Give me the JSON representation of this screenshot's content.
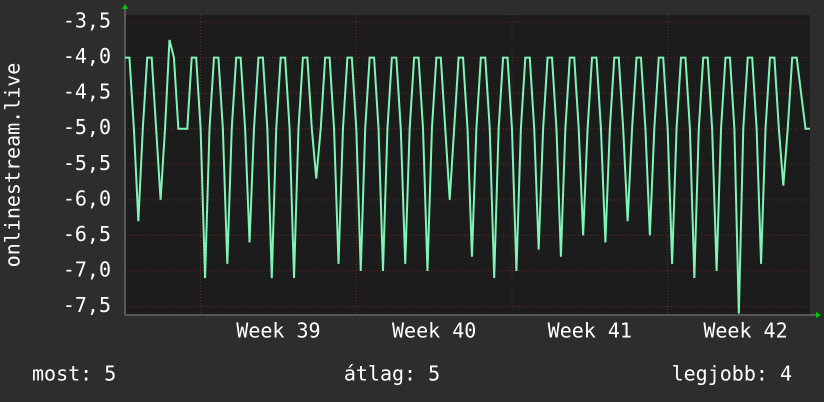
{
  "chart_data": {
    "type": "line",
    "y_label": "onlinestream.live",
    "ylim": [
      -7.62,
      -3.4
    ],
    "yticks": [
      {
        "value": -3.5,
        "label": "-3,5"
      },
      {
        "value": -4,
        "label": "-4,0"
      },
      {
        "value": -4.5,
        "label": "-4,5"
      },
      {
        "value": -5,
        "label": "-5,0"
      },
      {
        "value": -5.5,
        "label": "-5,5"
      },
      {
        "value": -6,
        "label": "-6,0"
      },
      {
        "value": -6.5,
        "label": "-6,5"
      },
      {
        "value": -7,
        "label": "-7,0"
      },
      {
        "value": -7.5,
        "label": "-7,5"
      }
    ],
    "xlim": [
      0,
      30.8
    ],
    "xticks": [
      {
        "value": 3.4,
        "label": "Week 39"
      },
      {
        "value": 10.4,
        "label": "Week 40"
      },
      {
        "value": 17.4,
        "label": "Week 41"
      },
      {
        "value": 24.4,
        "label": "Week 42"
      }
    ],
    "grid": true,
    "x": [
      0,
      0.2,
      0.4,
      0.6,
      0.8,
      1,
      1.2,
      1.4,
      1.6,
      1.8,
      2,
      2.2,
      2.4,
      2.6,
      2.8,
      3,
      3.2,
      3.4,
      3.6,
      3.8,
      4,
      4.2,
      4.4,
      4.6,
      4.8,
      5,
      5.2,
      5.4,
      5.6,
      5.8,
      6,
      6.2,
      6.4,
      6.6,
      6.8,
      7,
      7.2,
      7.4,
      7.6,
      7.8,
      8,
      8.2,
      8.4,
      8.6,
      8.8,
      9,
      9.2,
      9.4,
      9.6,
      9.8,
      10,
      10.2,
      10.4,
      10.6,
      10.8,
      11,
      11.2,
      11.4,
      11.6,
      11.8,
      12,
      12.2,
      12.4,
      12.6,
      12.8,
      13,
      13.2,
      13.4,
      13.6,
      13.8,
      14,
      14.2,
      14.4,
      14.6,
      14.8,
      15,
      15.2,
      15.4,
      15.6,
      15.8,
      16,
      16.2,
      16.4,
      16.6,
      16.8,
      17,
      17.2,
      17.4,
      17.6,
      17.8,
      18,
      18.2,
      18.4,
      18.6,
      18.8,
      19,
      19.2,
      19.4,
      19.6,
      19.8,
      20,
      20.2,
      20.4,
      20.6,
      20.8,
      21,
      21.2,
      21.4,
      21.6,
      21.8,
      22,
      22.2,
      22.4,
      22.6,
      22.8,
      23,
      23.2,
      23.4,
      23.6,
      23.8,
      24,
      24.2,
      24.4,
      24.6,
      24.8,
      25,
      25.2,
      25.4,
      25.6,
      25.8,
      26,
      26.2,
      26.4,
      26.6,
      26.8,
      27,
      27.2,
      27.4,
      27.6,
      27.8,
      28,
      28.2,
      28.4,
      28.6,
      28.8,
      29,
      29.2,
      29.4,
      29.6,
      29.8,
      30,
      30.2,
      30.4,
      30.6,
      30.8
    ],
    "series": [
      {
        "color": "#80f5b8",
        "values": [
          -4,
          -4,
          -5,
          -6.3,
          -5,
          -4,
          -4,
          -5,
          -6,
          -5,
          -3.75,
          -4,
          -5,
          -5,
          -5,
          -4,
          -4,
          -5,
          -7.1,
          -5,
          -4,
          -4,
          -5,
          -6.9,
          -5,
          -4,
          -4,
          -5,
          -6.6,
          -5,
          -4,
          -4,
          -5,
          -7.1,
          -5,
          -4,
          -4,
          -5,
          -7.1,
          -5,
          -4,
          -4,
          -5,
          -5.7,
          -5,
          -4,
          -4,
          -5,
          -6.9,
          -5,
          -4,
          -4,
          -5,
          -7,
          -5,
          -4,
          -4,
          -5,
          -7,
          -5,
          -4,
          -4,
          -5,
          -6.9,
          -5,
          -4,
          -4,
          -5,
          -7,
          -5,
          -4,
          -4,
          -5,
          -6,
          -5,
          -4,
          -4,
          -5,
          -6.8,
          -5,
          -4,
          -4,
          -5,
          -7.1,
          -5,
          -4,
          -4,
          -5,
          -7,
          -5,
          -4,
          -4,
          -5,
          -6.7,
          -5,
          -4,
          -4,
          -5,
          -6.8,
          -5,
          -4,
          -4,
          -5,
          -6.5,
          -5,
          -4,
          -4,
          -5,
          -6.6,
          -5,
          -4,
          -4,
          -5,
          -6.3,
          -5,
          -4,
          -4,
          -5,
          -6.5,
          -5,
          -4,
          -4,
          -5,
          -6.9,
          -5,
          -4,
          -4,
          -5,
          -7.1,
          -5,
          -4,
          -4,
          -5,
          -7,
          -5,
          -4,
          -4,
          -5,
          -7.6,
          -5,
          -4,
          -4,
          -5,
          -6.9,
          -5,
          -4,
          -4,
          -5,
          -5.8,
          -5,
          -4,
          -4,
          -4.5,
          -5,
          -5
        ]
      }
    ]
  },
  "footer": [
    "most: 5",
    "átlag: 5",
    "legjobb: 4"
  ]
}
